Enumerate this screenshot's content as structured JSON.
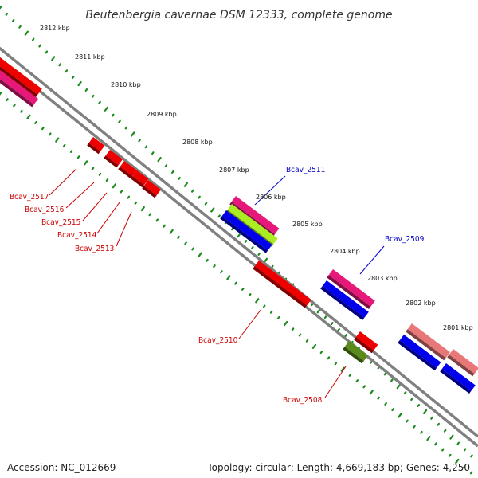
{
  "title": "Beutenbergia cavernae DSM 12333, complete genome",
  "footer": {
    "accession": "Accession: NC_012669",
    "topology": "Topology: circular; Length: 4,669,183 bp; Genes: 4,250"
  },
  "colors": {
    "backbone": "#808080",
    "tick_dots": "#1a8a1a",
    "red_feature": "#ee0000",
    "pink_feature": "#e6197a",
    "lime_feature": "#aaee22",
    "blue_feature": "#0000ee",
    "salmon_feature": "#e87878",
    "olive_feature": "#5a8a1a",
    "red_label": "#cc0000",
    "blue_label": "#0000cc"
  },
  "scale_labels": [
    "2812 kbp",
    "2811 kbp",
    "2810 kbp",
    "2809 kbp",
    "2808 kbp",
    "2807 kbp",
    "2806 kbp",
    "2805 kbp",
    "2804 kbp",
    "2803 kbp",
    "2802 kbp",
    "2801 kbp"
  ],
  "gene_labels": [
    {
      "name": "Bcav_2517",
      "color": "red"
    },
    {
      "name": "Bcav_2516",
      "color": "red"
    },
    {
      "name": "Bcav_2515",
      "color": "red"
    },
    {
      "name": "Bcav_2514",
      "color": "red"
    },
    {
      "name": "Bcav_2513",
      "color": "red"
    },
    {
      "name": "Bcav_2511",
      "color": "blue"
    },
    {
      "name": "Bcav_2510",
      "color": "red"
    },
    {
      "name": "Bcav_2509",
      "color": "blue"
    },
    {
      "name": "Bcav_2508",
      "color": "red"
    }
  ]
}
